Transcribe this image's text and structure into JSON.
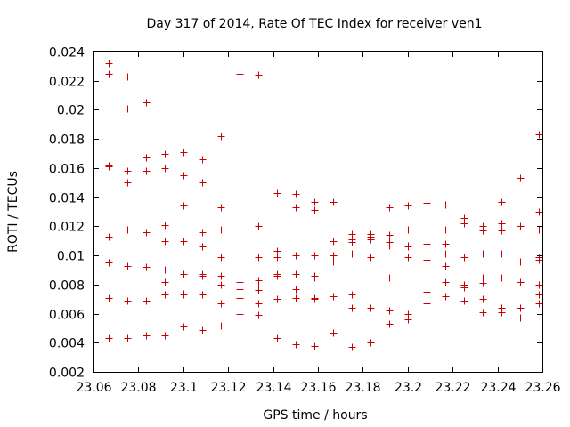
{
  "chart_data": {
    "type": "scatter",
    "title": "Day 317 of 2014, Rate Of TEC Index for receiver ven1",
    "xlabel": "GPS time / hours",
    "ylabel": "ROTI / TECUs",
    "xlim": [
      23.06,
      23.26
    ],
    "ylim": [
      0.002,
      0.024
    ],
    "xticks": [
      23.06,
      23.08,
      23.1,
      23.12,
      23.14,
      23.16,
      23.18,
      23.2,
      23.22,
      23.24,
      23.26
    ],
    "xtick_labels": [
      "23.06",
      "23.08",
      "23.1",
      "23.12",
      "23.14",
      "23.16",
      "23.18",
      "23.2",
      "23.22",
      "23.24",
      "23.26"
    ],
    "yticks": [
      0.002,
      0.004,
      0.006,
      0.008,
      0.01,
      0.012,
      0.014,
      0.016,
      0.018,
      0.02,
      0.022,
      0.024
    ],
    "ytick_labels": [
      "0.002",
      "0.004",
      "0.006",
      "0.008",
      "0.01",
      "0.012",
      "0.014",
      "0.016",
      "0.018",
      "0.02",
      "0.022",
      "0.024"
    ],
    "marker": "+",
    "marker_color": "#cc0000",
    "series": [
      {
        "name": "ven1",
        "points": [
          [
            23.0667,
            0.0232
          ],
          [
            23.0667,
            0.0225
          ],
          [
            23.0667,
            0.0162
          ],
          [
            23.0667,
            0.0161
          ],
          [
            23.0667,
            0.0113
          ],
          [
            23.0667,
            0.0095
          ],
          [
            23.0667,
            0.0071
          ],
          [
            23.0667,
            0.0043
          ],
          [
            23.075,
            0.0223
          ],
          [
            23.075,
            0.0201
          ],
          [
            23.075,
            0.0158
          ],
          [
            23.075,
            0.015
          ],
          [
            23.075,
            0.0118
          ],
          [
            23.075,
            0.0093
          ],
          [
            23.075,
            0.0069
          ],
          [
            23.075,
            0.0043
          ],
          [
            23.0833,
            0.0205
          ],
          [
            23.0833,
            0.0167
          ],
          [
            23.0833,
            0.0158
          ],
          [
            23.0833,
            0.0116
          ],
          [
            23.0833,
            0.0092
          ],
          [
            23.0833,
            0.0069
          ],
          [
            23.0833,
            0.0045
          ],
          [
            23.0917,
            0.017
          ],
          [
            23.0917,
            0.016
          ],
          [
            23.0917,
            0.0121
          ],
          [
            23.0917,
            0.011
          ],
          [
            23.0917,
            0.009
          ],
          [
            23.0917,
            0.0082
          ],
          [
            23.0917,
            0.0073
          ],
          [
            23.0917,
            0.0045
          ],
          [
            23.1,
            0.0171
          ],
          [
            23.1,
            0.0155
          ],
          [
            23.1,
            0.0134
          ],
          [
            23.1,
            0.011
          ],
          [
            23.1,
            0.0087
          ],
          [
            23.1,
            0.0074
          ],
          [
            23.1,
            0.0073
          ],
          [
            23.1,
            0.0051
          ],
          [
            23.1083,
            0.0166
          ],
          [
            23.1083,
            0.015
          ],
          [
            23.1083,
            0.0116
          ],
          [
            23.1083,
            0.0106
          ],
          [
            23.1083,
            0.0087
          ],
          [
            23.1083,
            0.0086
          ],
          [
            23.1083,
            0.0073
          ],
          [
            23.1083,
            0.0049
          ],
          [
            23.1167,
            0.0182
          ],
          [
            23.1167,
            0.0133
          ],
          [
            23.1167,
            0.0118
          ],
          [
            23.1167,
            0.0099
          ],
          [
            23.1167,
            0.0086
          ],
          [
            23.1167,
            0.008
          ],
          [
            23.1167,
            0.0067
          ],
          [
            23.1167,
            0.0052
          ],
          [
            23.125,
            0.0225
          ],
          [
            23.125,
            0.0129
          ],
          [
            23.125,
            0.0107
          ],
          [
            23.125,
            0.0082
          ],
          [
            23.125,
            0.0077
          ],
          [
            23.125,
            0.0071
          ],
          [
            23.125,
            0.0063
          ],
          [
            23.125,
            0.006
          ],
          [
            23.1333,
            0.0224
          ],
          [
            23.1333,
            0.012
          ],
          [
            23.1333,
            0.0099
          ],
          [
            23.1333,
            0.0083
          ],
          [
            23.1333,
            0.0079
          ],
          [
            23.1333,
            0.0076
          ],
          [
            23.1333,
            0.0067
          ],
          [
            23.1333,
            0.0059
          ],
          [
            23.1417,
            0.0143
          ],
          [
            23.1417,
            0.0103
          ],
          [
            23.1417,
            0.0099
          ],
          [
            23.1417,
            0.0087
          ],
          [
            23.1417,
            0.0086
          ],
          [
            23.1417,
            0.007
          ],
          [
            23.1417,
            0.0043
          ],
          [
            23.15,
            0.0142
          ],
          [
            23.15,
            0.0133
          ],
          [
            23.15,
            0.01
          ],
          [
            23.15,
            0.0087
          ],
          [
            23.15,
            0.0077
          ],
          [
            23.15,
            0.0071
          ],
          [
            23.15,
            0.0039
          ],
          [
            23.1583,
            0.0137
          ],
          [
            23.1583,
            0.0131
          ],
          [
            23.1583,
            0.01
          ],
          [
            23.1583,
            0.0086
          ],
          [
            23.1583,
            0.0085
          ],
          [
            23.1583,
            0.0071
          ],
          [
            23.1583,
            0.007
          ],
          [
            23.1583,
            0.0038
          ],
          [
            23.1667,
            0.0137
          ],
          [
            23.1667,
            0.011
          ],
          [
            23.1667,
            0.01
          ],
          [
            23.1667,
            0.0096
          ],
          [
            23.1667,
            0.0072
          ],
          [
            23.1667,
            0.0047
          ],
          [
            23.175,
            0.0115
          ],
          [
            23.175,
            0.0111
          ],
          [
            23.175,
            0.0109
          ],
          [
            23.175,
            0.0101
          ],
          [
            23.175,
            0.0073
          ],
          [
            23.175,
            0.0064
          ],
          [
            23.175,
            0.0037
          ],
          [
            23.1833,
            0.0115
          ],
          [
            23.1833,
            0.0113
          ],
          [
            23.1833,
            0.0111
          ],
          [
            23.1833,
            0.0099
          ],
          [
            23.1833,
            0.0064
          ],
          [
            23.1833,
            0.004
          ],
          [
            23.1917,
            0.0133
          ],
          [
            23.1917,
            0.0114
          ],
          [
            23.1917,
            0.0109
          ],
          [
            23.1917,
            0.0107
          ],
          [
            23.1917,
            0.0085
          ],
          [
            23.1917,
            0.0062
          ],
          [
            23.1917,
            0.0053
          ],
          [
            23.2,
            0.0134
          ],
          [
            23.2,
            0.0118
          ],
          [
            23.2,
            0.0107
          ],
          [
            23.2,
            0.0106
          ],
          [
            23.2,
            0.0099
          ],
          [
            23.2,
            0.006
          ],
          [
            23.2,
            0.0056
          ],
          [
            23.2083,
            0.0136
          ],
          [
            23.2083,
            0.0118
          ],
          [
            23.2083,
            0.0108
          ],
          [
            23.2083,
            0.0101
          ],
          [
            23.2083,
            0.0097
          ],
          [
            23.2083,
            0.0075
          ],
          [
            23.2083,
            0.0067
          ],
          [
            23.2167,
            0.0135
          ],
          [
            23.2167,
            0.0118
          ],
          [
            23.2167,
            0.0108
          ],
          [
            23.2167,
            0.0101
          ],
          [
            23.2167,
            0.0093
          ],
          [
            23.2167,
            0.0082
          ],
          [
            23.2167,
            0.0072
          ],
          [
            23.225,
            0.0126
          ],
          [
            23.225,
            0.0122
          ],
          [
            23.225,
            0.0099
          ],
          [
            23.225,
            0.008
          ],
          [
            23.225,
            0.0078
          ],
          [
            23.225,
            0.0069
          ],
          [
            23.2333,
            0.012
          ],
          [
            23.2333,
            0.0117
          ],
          [
            23.2333,
            0.0101
          ],
          [
            23.2333,
            0.0085
          ],
          [
            23.2333,
            0.0081
          ],
          [
            23.2333,
            0.007
          ],
          [
            23.2333,
            0.0061
          ],
          [
            23.2417,
            0.0137
          ],
          [
            23.2417,
            0.0122
          ],
          [
            23.2417,
            0.0117
          ],
          [
            23.2417,
            0.0101
          ],
          [
            23.2417,
            0.0085
          ],
          [
            23.2417,
            0.0064
          ],
          [
            23.2417,
            0.0061
          ],
          [
            23.25,
            0.0153
          ],
          [
            23.25,
            0.012
          ],
          [
            23.25,
            0.0096
          ],
          [
            23.25,
            0.0082
          ],
          [
            23.25,
            0.0064
          ],
          [
            23.25,
            0.0057
          ],
          [
            23.2583,
            0.0183
          ],
          [
            23.2583,
            0.013
          ],
          [
            23.2583,
            0.0118
          ],
          [
            23.2583,
            0.0099
          ],
          [
            23.2583,
            0.0097
          ],
          [
            23.2583,
            0.008
          ],
          [
            23.2583,
            0.0073
          ],
          [
            23.2583,
            0.0067
          ]
        ]
      }
    ]
  }
}
